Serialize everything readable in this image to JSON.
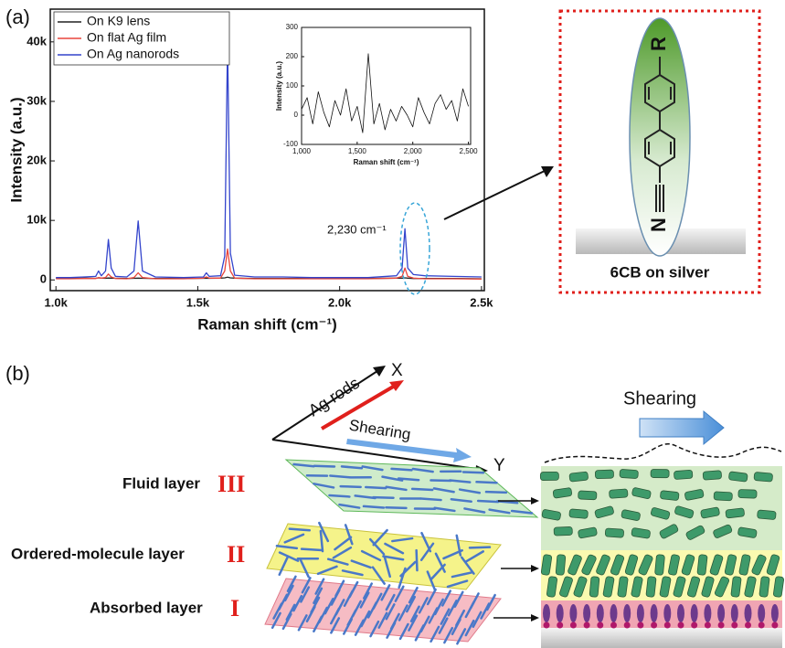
{
  "panel_labels": [
    "(a)",
    "(b)"
  ],
  "chart_data": [
    {
      "type": "line",
      "x_label": "Raman shift (cm⁻¹)",
      "y_label": "Intensity (a.u.)",
      "x": [
        1000,
        1050,
        1100,
        1140,
        1150,
        1160,
        1175,
        1185,
        1195,
        1210,
        1250,
        1275,
        1290,
        1305,
        1350,
        1450,
        1520,
        1530,
        1540,
        1580,
        1595,
        1605,
        1615,
        1630,
        1700,
        1800,
        1900,
        2000,
        2100,
        2200,
        2220,
        2230,
        2240,
        2260,
        2300,
        2400,
        2500
      ],
      "series": [
        {
          "name": "On K9 lens",
          "color": "#222222",
          "values": [
            300,
            250,
            300,
            280,
            350,
            300,
            280,
            320,
            300,
            280,
            250,
            280,
            300,
            280,
            250,
            250,
            280,
            300,
            280,
            300,
            350,
            450,
            350,
            300,
            250,
            250,
            250,
            250,
            250,
            300,
            300,
            350,
            300,
            250,
            250,
            250,
            200
          ]
        },
        {
          "name": "On flat Ag film",
          "color": "#e8453c",
          "values": [
            200,
            200,
            250,
            250,
            400,
            300,
            400,
            1000,
            500,
            250,
            200,
            400,
            1200,
            400,
            200,
            200,
            300,
            500,
            300,
            300,
            1500,
            5200,
            1500,
            300,
            200,
            200,
            200,
            200,
            200,
            300,
            600,
            2000,
            600,
            300,
            200,
            200,
            150
          ]
        },
        {
          "name": "On Ag nanorods",
          "color": "#3344cc",
          "values": [
            400,
            400,
            500,
            600,
            1500,
            700,
            1500,
            6800,
            2000,
            600,
            500,
            1500,
            9900,
            1500,
            500,
            400,
            500,
            1200,
            600,
            700,
            4000,
            40000,
            4500,
            800,
            500,
            500,
            400,
            400,
            400,
            700,
            2000,
            8600,
            2000,
            900,
            700,
            600,
            500
          ]
        }
      ],
      "xlim": [
        980,
        2510
      ],
      "ylim": [
        -1800,
        45500
      ],
      "xticks": [
        {
          "value": 1000,
          "label": "1.0k"
        },
        {
          "value": 1500,
          "label": "1.5k"
        },
        {
          "value": 2000,
          "label": "2.0k"
        },
        {
          "value": 2500,
          "label": "2.5k"
        }
      ],
      "yticks": [
        0,
        {
          "value": 10000,
          "label": "10k"
        },
        {
          "value": 20000,
          "label": "20k"
        },
        {
          "value": 30000,
          "label": "30k"
        },
        {
          "value": 40000,
          "label": "40k"
        }
      ],
      "legend": "upper left",
      "annotation": "2,230 cm⁻¹"
    },
    {
      "type": "line",
      "x_label": "Raman shift (cm⁻¹)",
      "y_label": "Intensity (a.u.)",
      "x": [
        1000,
        1050,
        1100,
        1150,
        1200,
        1250,
        1300,
        1350,
        1400,
        1450,
        1500,
        1550,
        1600,
        1650,
        1700,
        1750,
        1800,
        1850,
        1900,
        1950,
        2000,
        2050,
        2100,
        2150,
        2200,
        2250,
        2300,
        2350,
        2400,
        2450,
        2500
      ],
      "series": [
        {
          "color": "#111111",
          "values": [
            20,
            60,
            -30,
            80,
            10,
            -40,
            50,
            0,
            90,
            -20,
            30,
            -60,
            210,
            -30,
            40,
            -50,
            20,
            -20,
            30,
            0,
            -40,
            60,
            10,
            -30,
            40,
            70,
            20,
            50,
            -20,
            90,
            30
          ]
        }
      ],
      "xlim": [
        1000,
        2520
      ],
      "ylim": [
        -100,
        300
      ],
      "xticks": [
        {
          "value": 1000,
          "label": "1,000"
        },
        {
          "value": 1500,
          "label": "1,500"
        },
        {
          "value": 2000,
          "label": "2,000"
        },
        {
          "value": 2500,
          "label": "2,500"
        }
      ],
      "yticks": [
        -100,
        0,
        100,
        200,
        300
      ]
    }
  ],
  "molecule_box": {
    "caption": "6CB on silver",
    "top_group": "R",
    "bottom_atom": "N"
  },
  "shearing_diagram": {
    "axis_x": "X",
    "axis_y": "Y",
    "rod_label": "Ag rods",
    "shear_label": "Shearing",
    "flow_label": "Shearing",
    "layers": [
      {
        "name": "Fluid layer",
        "numeral": "III"
      },
      {
        "name": "Ordered-molecule layer",
        "numeral": "II"
      },
      {
        "name": "Absorbed layer",
        "numeral": "I"
      }
    ]
  }
}
